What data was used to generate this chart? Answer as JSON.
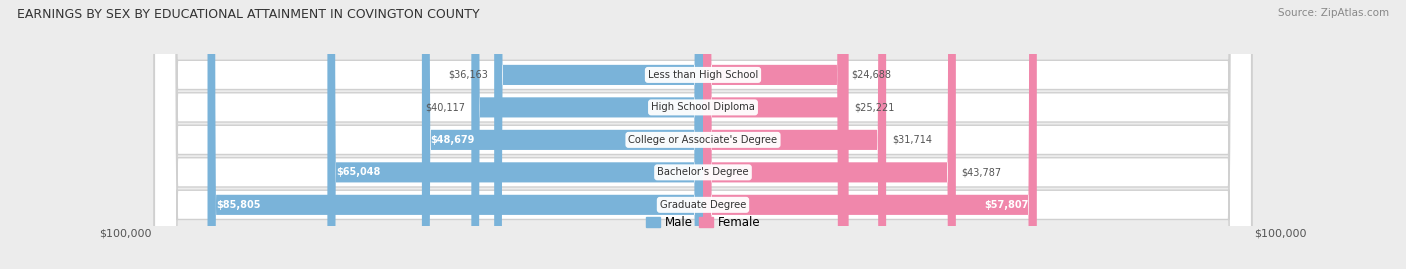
{
  "title": "EARNINGS BY SEX BY EDUCATIONAL ATTAINMENT IN COVINGTON COUNTY",
  "source": "Source: ZipAtlas.com",
  "categories": [
    "Less than High School",
    "High School Diploma",
    "College or Associate's Degree",
    "Bachelor's Degree",
    "Graduate Degree"
  ],
  "male_values": [
    36163,
    40117,
    48679,
    65048,
    85805
  ],
  "female_values": [
    24688,
    25221,
    31714,
    43787,
    57807
  ],
  "male_color": "#7ab3d9",
  "female_color": "#f087ab",
  "background_color": "#ececec",
  "row_bg_color": "#ffffff",
  "row_bg_stroke": "#d0d0d0",
  "bar_height": 0.62,
  "max_val": 100000,
  "outside_label_color": "#555555",
  "inside_label_color": "#ffffff"
}
